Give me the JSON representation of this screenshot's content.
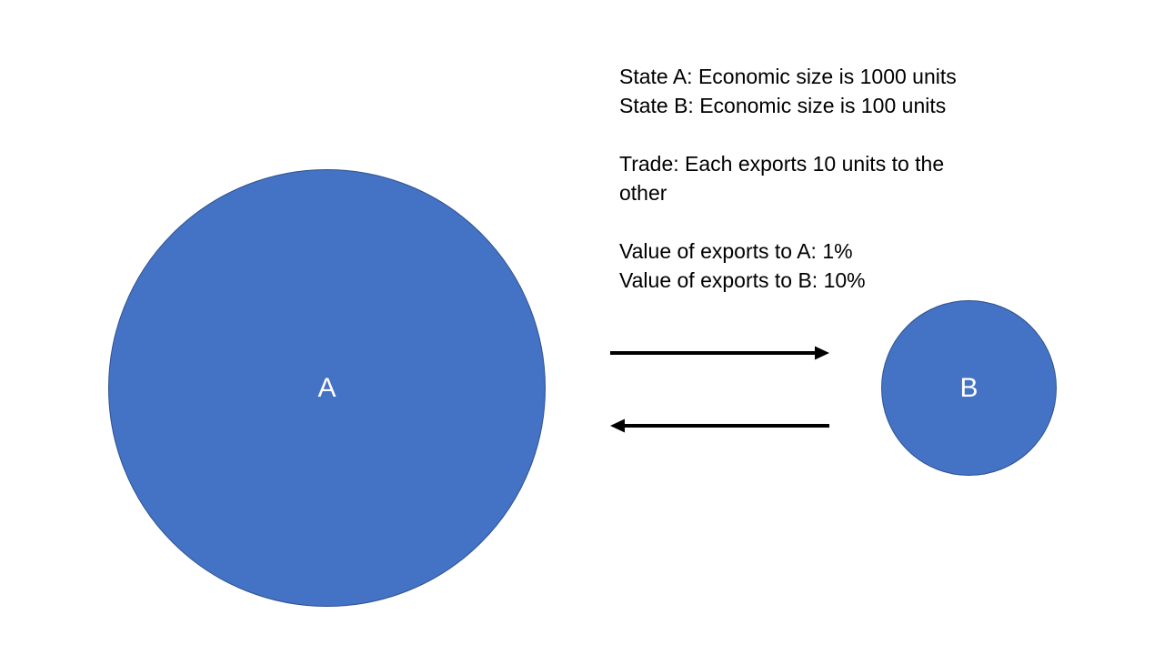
{
  "colors": {
    "circle_fill": "#4472c4",
    "circle_border": "#2f528f",
    "arrow": "#000000",
    "text": "#000000",
    "circle_label": "#ffffff"
  },
  "nodes": {
    "a": {
      "label": "A"
    },
    "b": {
      "label": "B"
    }
  },
  "edges": [
    {
      "from": "A",
      "to": "B"
    },
    {
      "from": "B",
      "to": "A"
    }
  ],
  "info": {
    "state_a": "State A: Economic size is 1000 units",
    "state_b": "State B: Economic size is 100 units",
    "trade": "Trade: Each exports 10 units to the other",
    "exports_to_a": "Value of exports to A: 1%",
    "exports_to_b": "Value of exports to B: 10%"
  }
}
